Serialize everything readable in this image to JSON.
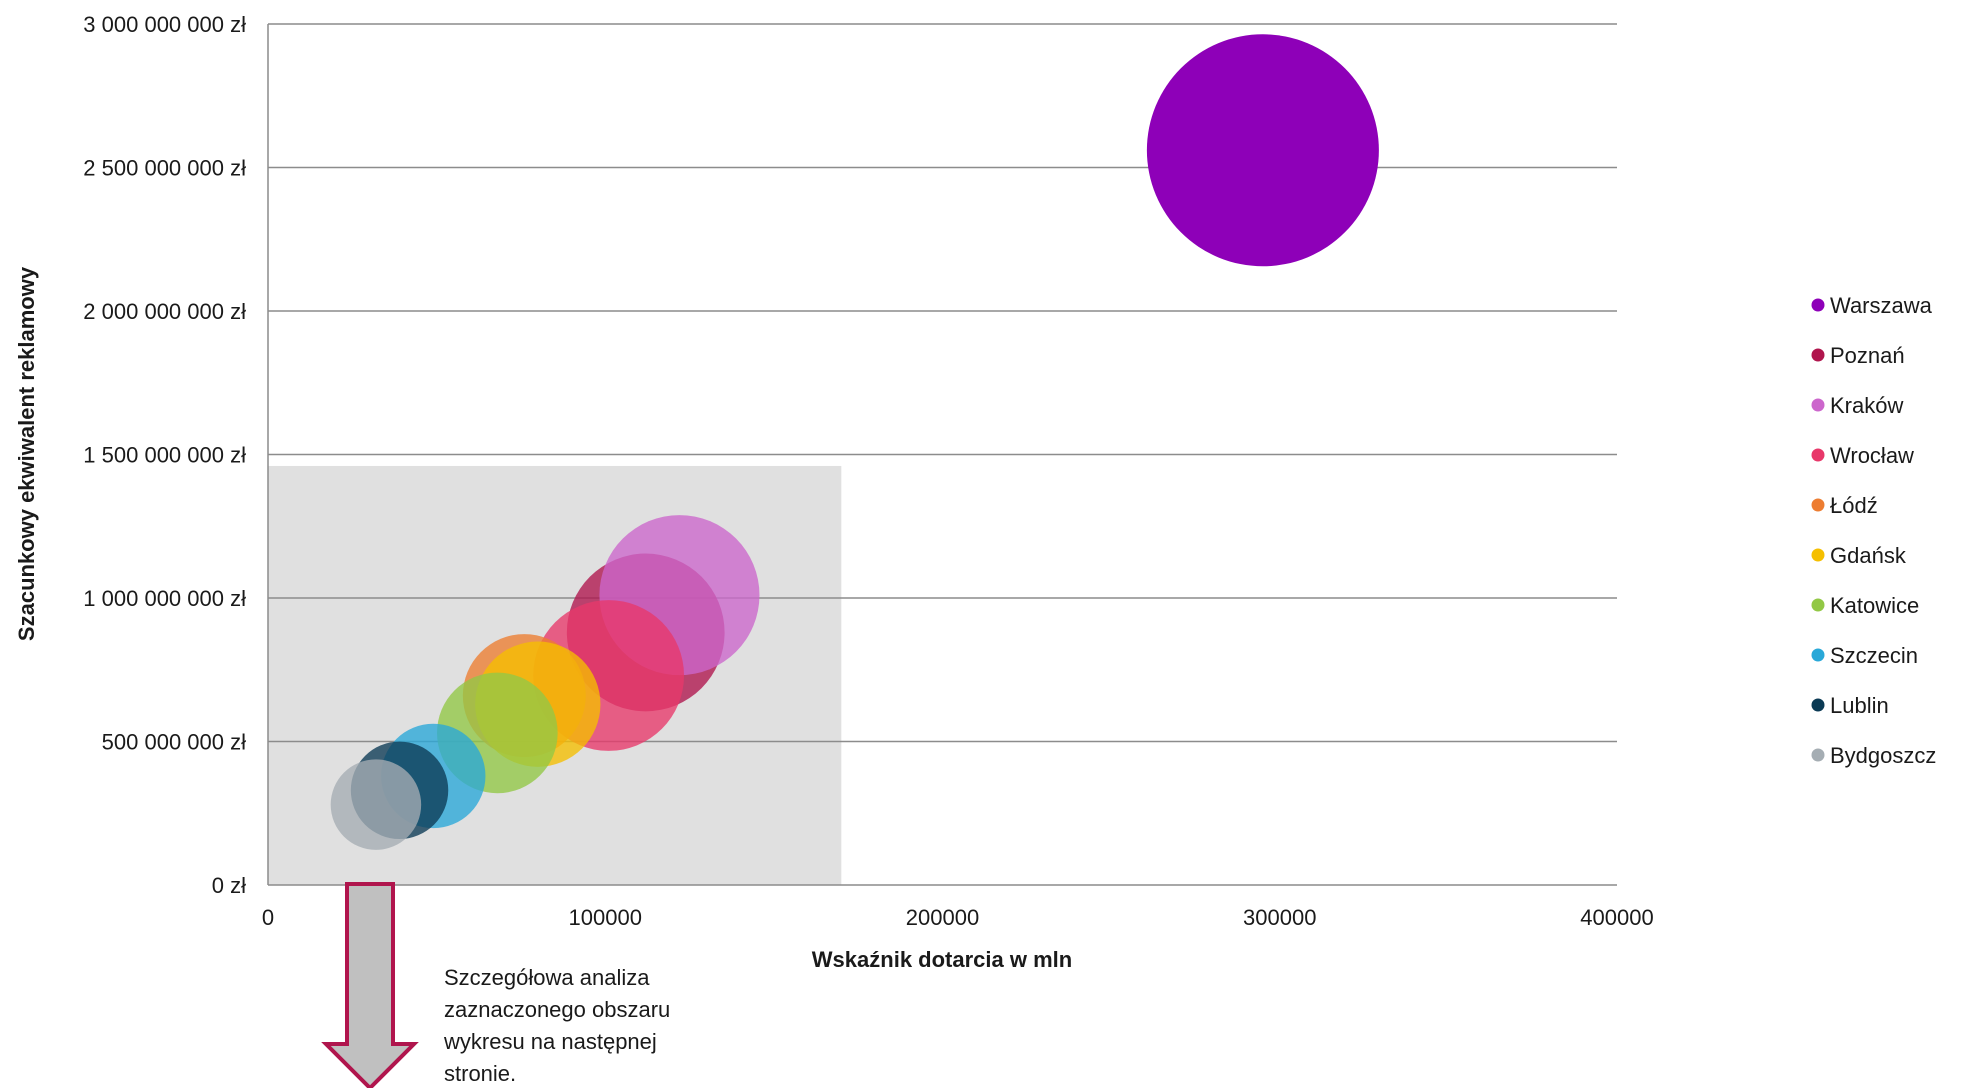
{
  "chart_data": {
    "type": "bubble",
    "xlabel": "Wskaźnik dotarcia w mln",
    "ylabel": "Szacunkowy ekwiwalent reklamowy",
    "xlim": [
      0,
      400000
    ],
    "ylim": [
      0,
      3000000000
    ],
    "x_ticks": [
      "0",
      "100000",
      "200000",
      "300000",
      "400000"
    ],
    "y_ticks": [
      "0 zł",
      "500 000 000 zł",
      "1 000 000 000 zł",
      "1 500 000 000 zł",
      "2 000 000 000 zł",
      "2 500 000 000 zł",
      "3 000 000 000 zł"
    ],
    "grid": "horizontal",
    "legend_position": "right",
    "highlight_region": {
      "x": [
        0,
        170000
      ],
      "y": [
        0,
        1460000000
      ],
      "color": "#e0e0e0"
    },
    "series": [
      {
        "name": "Warszawa",
        "color": "#8e00b8",
        "x": 295000,
        "y": 2560000000,
        "size": 1.0
      },
      {
        "name": "Poznań",
        "color": "#b0154d",
        "x": 112000,
        "y": 880000000,
        "size": 0.68
      },
      {
        "name": "Kraków",
        "color": "#cc66cc",
        "x": 122000,
        "y": 1010000000,
        "size": 0.69
      },
      {
        "name": "Wrocław",
        "color": "#e8386a",
        "x": 101000,
        "y": 730000000,
        "size": 0.65
      },
      {
        "name": "Łódź",
        "color": "#ed7d31",
        "x": 76000,
        "y": 660000000,
        "size": 0.53
      },
      {
        "name": "Gdańsk",
        "color": "#f5bf00",
        "x": 80000,
        "y": 630000000,
        "size": 0.54
      },
      {
        "name": "Katowice",
        "color": "#92c845",
        "x": 68000,
        "y": 530000000,
        "size": 0.52
      },
      {
        "name": "Szczecin",
        "color": "#29a8d8",
        "x": 49000,
        "y": 380000000,
        "size": 0.45
      },
      {
        "name": "Lublin",
        "color": "#0b3a54",
        "x": 39000,
        "y": 330000000,
        "size": 0.42
      },
      {
        "name": "Bydgoszcz",
        "color": "#a5adb3",
        "x": 32000,
        "y": 280000000,
        "size": 0.39
      }
    ]
  },
  "annotation": {
    "lines": [
      "Szczegółowa analiza",
      "zaznaczonego obszaru",
      "wykresu na następnej",
      "stronie."
    ],
    "arrow_color": "#b0154d",
    "arrow_fill": "#c0c0c0"
  }
}
